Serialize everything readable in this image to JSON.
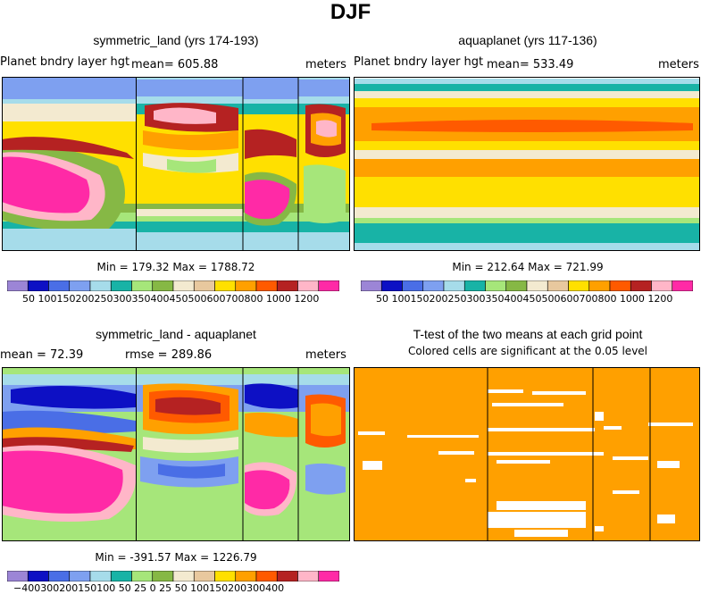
{
  "figure_title": "DJF",
  "chart_data": [
    {
      "type": "heatmap",
      "title": "symmetric_land (yrs 174-193)",
      "left_label": "Planet bndry layer hgt",
      "mean_label": "mean= 605.88",
      "units": "meters",
      "min_max": "Min = 179.32 Max = 1788.72",
      "levels": [
        50,
        100,
        150,
        200,
        250,
        300,
        350,
        400,
        450,
        500,
        600,
        700,
        800,
        1000,
        1200
      ],
      "levels_text": "50 100150200250300350400450500600700800 1000 1200",
      "colors": [
        "#9c85d6",
        "#0d10c4",
        "#4a6ee6",
        "#7ea0f0",
        "#a6dcea",
        "#18b3a6",
        "#a6e67a",
        "#86b845",
        "#f3ead0",
        "#e8c89e",
        "#ffe000",
        "#ffa000",
        "#ff5a00",
        "#b52222",
        "#ffb6c8",
        "#ff2aa6"
      ]
    },
    {
      "type": "heatmap",
      "title": "aquaplanet (yrs 117-136)",
      "left_label": "Planet bndry layer hgt",
      "mean_label": "mean= 533.49",
      "units": "meters",
      "min_max": "Min = 212.64 Max = 721.99",
      "levels": [
        50,
        100,
        150,
        200,
        250,
        300,
        350,
        400,
        450,
        500,
        600,
        700,
        800,
        1000,
        1200
      ],
      "levels_text": "50 100150200250300350400450500600700800 1000 1200",
      "colors": [
        "#9c85d6",
        "#0d10c4",
        "#4a6ee6",
        "#7ea0f0",
        "#a6dcea",
        "#18b3a6",
        "#a6e67a",
        "#86b845",
        "#f3ead0",
        "#e8c89e",
        "#ffe000",
        "#ffa000",
        "#ff5a00",
        "#b52222",
        "#ffb6c8",
        "#ff2aa6"
      ]
    },
    {
      "type": "heatmap",
      "title": "symmetric_land - aquaplanet",
      "left_label": "mean =  72.39",
      "mean_label": "rmse = 289.86",
      "units": "meters",
      "min_max": "Min = -391.57 Max = 1226.79",
      "levels": [
        -400,
        -300,
        -200,
        -150,
        -100,
        -50,
        -25,
        0,
        25,
        50,
        100,
        150,
        200,
        300,
        400
      ],
      "levels_text": "−400300200150100 50 25  0  25  50 100150200300400",
      "colors": [
        "#9c85d6",
        "#0d10c4",
        "#4a6ee6",
        "#7ea0f0",
        "#a6dcea",
        "#18b3a6",
        "#a6e67a",
        "#86b845",
        "#f3ead0",
        "#e8c89e",
        "#ffe000",
        "#ffa000",
        "#ff5a00",
        "#b52222",
        "#ffb6c8",
        "#ff2aa6"
      ]
    },
    {
      "type": "heatmap",
      "title": "T-test of the two means at each grid point",
      "subtitle": "Colored cells are significant at the 0.05 level",
      "significant_color": "#ffa000",
      "insignificant_color": "#ffffff"
    }
  ]
}
